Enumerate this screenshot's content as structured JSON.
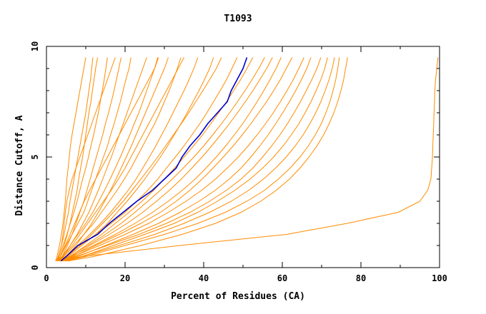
{
  "chart_data": {
    "type": "line",
    "title": "T1093",
    "xlabel": "Percent of Residues (CA)",
    "ylabel": "Distance Cutoff, A",
    "xlim": [
      0,
      100
    ],
    "ylim": [
      0,
      10
    ],
    "x_ticks": [
      "0",
      "20",
      "40",
      "60",
      "80",
      "100"
    ],
    "y_ticks": [
      "0",
      "5",
      "10"
    ],
    "grid": false,
    "colors": {
      "models": "#ff8c00",
      "highlight": "#0000cd",
      "axis": "#000000"
    },
    "y_levels": [
      0.3,
      0.5,
      1,
      1.5,
      2,
      2.5,
      3,
      3.5,
      4,
      4.5,
      5,
      5.5,
      6,
      6.5,
      7,
      7.5,
      8,
      8.5,
      9,
      9.5
    ],
    "highlight": {
      "x": [
        3.7,
        5.0,
        8.0,
        13.0,
        16.0,
        19.5,
        23.0,
        27.0,
        30.0,
        33.0,
        34.5,
        36.5,
        39.0,
        41.0,
        43.5,
        46.0,
        47.0,
        48.5,
        50.0,
        51.0
      ],
      "y": [
        0.3,
        0.5,
        1.0,
        1.5,
        2.0,
        2.5,
        3.0,
        3.5,
        4.0,
        4.5,
        5.0,
        5.5,
        6.0,
        6.5,
        7.0,
        7.5,
        8.0,
        8.5,
        9.0,
        9.5
      ]
    },
    "series": [
      {
        "x": [
          2.5,
          3.0,
          3.8,
          4.5,
          5.0,
          5.6,
          6.0,
          6.5,
          7.0,
          7.5,
          8.0,
          8.5,
          9.0,
          9.5,
          10.0,
          10.4,
          10.8,
          11.2,
          11.5,
          11.8
        ]
      },
      {
        "x": [
          2.8,
          3.5,
          4.5,
          5.3,
          6.0,
          6.6,
          7.2,
          7.8,
          8.2,
          8.7,
          9.2,
          9.6,
          10.0,
          10.4,
          10.8,
          11.3,
          11.7,
          12.1,
          12.5,
          13.0
        ]
      },
      {
        "x": [
          2.6,
          3.2,
          4.2,
          5.2,
          6.1,
          7.0,
          7.8,
          8.5,
          9.2,
          10.0,
          10.7,
          11.3,
          12.0,
          12.6,
          13.2,
          13.7,
          14.2,
          14.7,
          15.1,
          15.5
        ]
      },
      {
        "x": [
          3.0,
          4.0,
          5.3,
          6.5,
          7.5,
          8.5,
          9.5,
          10.3,
          11.1,
          11.9,
          12.7,
          13.5,
          14.3,
          15.0,
          15.8,
          16.5,
          17.2,
          17.8,
          18.4,
          19.0
        ]
      },
      {
        "x": [
          2.5,
          3.5,
          5.0,
          6.5,
          8.0,
          9.5,
          10.5,
          11.5,
          12.5,
          13.5,
          14.5,
          15.5,
          16.3,
          17.2,
          18.0,
          18.8,
          19.5,
          20.2,
          21.0,
          21.5
        ]
      },
      {
        "x": [
          3.2,
          4.3,
          6.0,
          7.8,
          9.3,
          10.8,
          12.0,
          13.2,
          14.3,
          15.4,
          16.5,
          17.5,
          18.5,
          19.5,
          20.5,
          21.5,
          22.5,
          23.5,
          24.5,
          25.5
        ]
      },
      {
        "x": [
          2.8,
          4.0,
          6.0,
          8.0,
          10.0,
          11.8,
          13.3,
          14.8,
          16.2,
          17.5,
          18.8,
          20.0,
          21.2,
          22.3,
          23.5,
          24.5,
          25.5,
          26.5,
          27.5,
          28.3
        ]
      },
      {
        "x": [
          3.5,
          5.0,
          7.5,
          9.5,
          11.5,
          13.2,
          14.8,
          16.3,
          17.7,
          19.0,
          20.3,
          21.6,
          22.8,
          24.0,
          25.2,
          26.4,
          27.6,
          28.8,
          30.0,
          31.0
        ]
      },
      {
        "x": [
          3.0,
          4.5,
          7.0,
          9.5,
          12.0,
          14.0,
          16.0,
          18.0,
          19.8,
          21.5,
          23.0,
          24.5,
          26.0,
          27.5,
          28.8,
          30.0,
          31.2,
          32.3,
          33.3,
          34.2
        ]
      },
      {
        "x": [
          3.3,
          5.0,
          8.0,
          11.0,
          13.8,
          16.3,
          18.6,
          20.8,
          22.8,
          24.5,
          26.2,
          27.8,
          29.3,
          30.8,
          32.2,
          33.6,
          35.0,
          36.3,
          37.5,
          38.5
        ]
      },
      {
        "x": [
          3.6,
          5.5,
          9.0,
          12.5,
          15.5,
          18.0,
          20.5,
          22.8,
          25.0,
          27.0,
          29.0,
          30.8,
          32.5,
          34.2,
          35.8,
          37.3,
          38.8,
          40.2,
          41.5,
          42.5
        ]
      },
      {
        "x": [
          3.0,
          5.0,
          8.5,
          12.5,
          16.5,
          20.0,
          23.0,
          25.8,
          28.3,
          30.5,
          32.8,
          35.0,
          37.0,
          39.0,
          40.8,
          42.5,
          44.2,
          45.8,
          47.2,
          48.5
        ]
      },
      {
        "x": [
          3.8,
          6.0,
          10.0,
          14.0,
          17.5,
          21.0,
          24.3,
          27.3,
          30.0,
          32.6,
          35.0,
          37.4,
          39.7,
          41.8,
          43.8,
          45.8,
          47.6,
          49.4,
          51.0,
          52.5
        ]
      },
      {
        "x": [
          3.5,
          5.8,
          10.5,
          15.0,
          19.0,
          22.5,
          25.8,
          29.0,
          32.0,
          34.8,
          37.5,
          40.0,
          42.3,
          44.5,
          46.6,
          48.6,
          50.5,
          52.3,
          54.0,
          55.5
        ]
      },
      {
        "x": [
          4.0,
          6.5,
          11.0,
          16.0,
          20.5,
          24.5,
          28.0,
          31.3,
          34.3,
          37.0,
          39.6,
          42.0,
          44.3,
          46.5,
          48.6,
          50.6,
          52.5,
          54.3,
          56.0,
          57.5
        ]
      },
      {
        "x": [
          3.2,
          6.0,
          12.0,
          17.5,
          22.5,
          27.0,
          31.0,
          34.6,
          37.8,
          40.6,
          43.2,
          45.6,
          47.8,
          49.9,
          51.8,
          53.6,
          55.3,
          56.9,
          58.4,
          59.7
        ]
      },
      {
        "x": [
          4.2,
          7.0,
          12.5,
          18.5,
          24.0,
          29.0,
          33.0,
          36.5,
          39.6,
          42.4,
          45.0,
          47.5,
          49.8,
          52.0,
          54.0,
          56.0,
          57.8,
          59.5,
          61.0,
          62.5
        ]
      },
      {
        "x": [
          3.7,
          6.8,
          13.5,
          20.0,
          26.0,
          31.0,
          35.5,
          39.5,
          43.0,
          46.0,
          48.8,
          51.3,
          53.6,
          55.7,
          57.7,
          59.5,
          61.2,
          62.8,
          64.2,
          65.5
        ]
      },
      {
        "x": [
          4.5,
          8.0,
          15.0,
          22.0,
          28.5,
          34.0,
          38.8,
          43.0,
          46.5,
          49.5,
          52.0,
          54.3,
          56.4,
          58.3,
          60.1,
          61.8,
          63.4,
          64.9,
          66.2,
          67.3
        ]
      },
      {
        "x": [
          4.0,
          7.5,
          15.5,
          23.5,
          30.5,
          36.5,
          41.5,
          45.8,
          49.5,
          52.5,
          55.0,
          57.3,
          59.4,
          61.3,
          63.0,
          64.6,
          66.1,
          67.5,
          68.8,
          69.8
        ]
      },
      {
        "x": [
          4.8,
          9.0,
          17.0,
          25.0,
          32.5,
          38.5,
          43.5,
          48.0,
          51.8,
          55.0,
          57.8,
          60.2,
          62.3,
          64.2,
          65.8,
          67.3,
          68.6,
          69.8,
          70.8,
          71.5
        ]
      },
      {
        "x": [
          4.2,
          9.0,
          18.5,
          27.5,
          35.0,
          41.5,
          47.0,
          51.5,
          55.2,
          58.3,
          61.0,
          63.3,
          65.3,
          67.0,
          68.5,
          69.8,
          70.9,
          71.9,
          72.7,
          73.3
        ]
      },
      {
        "x": [
          5.0,
          10.0,
          20.0,
          30.0,
          38.5,
          45.5,
          51.0,
          55.5,
          59.0,
          62.0,
          64.5,
          66.6,
          68.4,
          69.9,
          71.1,
          72.1,
          72.9,
          73.6,
          74.1,
          74.5
        ]
      },
      {
        "x": [
          5.5,
          12.0,
          24.0,
          34.5,
          43.0,
          49.5,
          54.5,
          58.5,
          61.8,
          64.5,
          66.8,
          68.8,
          70.5,
          71.9,
          73.1,
          74.1,
          74.9,
          75.6,
          76.1,
          76.6
        ]
      },
      {
        "x": [
          5.0,
          9.0,
          34.0,
          61.0,
          76.5,
          89.5,
          95.0,
          97.0,
          97.8,
          98.0,
          98.2,
          98.3,
          98.4,
          98.5,
          98.6,
          98.7,
          98.8,
          99.0,
          99.3,
          99.6
        ]
      },
      {
        "x": [
          2.3,
          2.7,
          3.3,
          3.8,
          4.2,
          4.5,
          4.8,
          5.0,
          5.2,
          5.5,
          5.8,
          6.1,
          6.5,
          7.0,
          7.5,
          8.0,
          8.5,
          9.0,
          9.5,
          10.0
        ]
      },
      {
        "x": [
          2.5,
          3.0,
          3.8,
          4.2,
          4.5,
          4.8,
          5.2,
          5.8,
          6.5,
          7.5,
          8.5,
          9.5,
          10.5,
          11.5,
          12.5,
          13.5,
          14.5,
          15.5,
          16.5,
          17.5
        ]
      },
      {
        "x": [
          2.8,
          3.6,
          4.8,
          6.0,
          7.2,
          8.4,
          9.6,
          11.0,
          12.5,
          14.0,
          15.5,
          17.0,
          18.5,
          20.0,
          21.5,
          23.0,
          24.5,
          26.0,
          27.5,
          28.5
        ]
      },
      {
        "x": [
          3.0,
          4.2,
          6.5,
          8.5,
          10.5,
          12.5,
          14.5,
          16.5,
          18.3,
          20.0,
          21.5,
          23.0,
          24.5,
          26.0,
          27.5,
          29.0,
          30.5,
          32.0,
          33.5,
          35.0
        ]
      },
      {
        "x": [
          3.4,
          5.2,
          8.5,
          11.5,
          14.3,
          17.0,
          19.5,
          21.8,
          24.0,
          26.2,
          28.3,
          30.3,
          32.3,
          34.3,
          36.2,
          38.0,
          39.8,
          41.5,
          43.2,
          44.5
        ]
      }
    ]
  }
}
